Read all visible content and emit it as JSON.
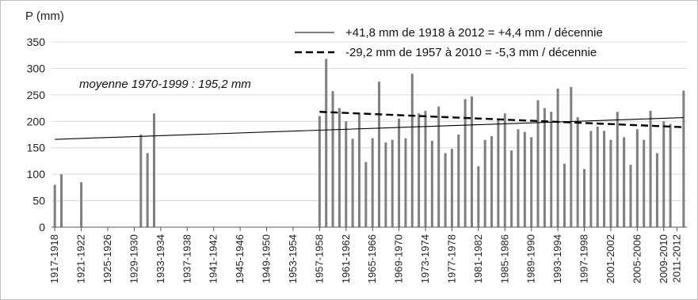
{
  "chart_data": {
    "type": "bar",
    "ylabel": "P (mm)",
    "ylim": [
      0,
      350
    ],
    "yticks": [
      0,
      50,
      100,
      150,
      200,
      250,
      300,
      350
    ],
    "grid": "horizontal",
    "legend_position": "top-right",
    "bar_color": "#7f7f7f",
    "annotation": "moyenne 1970-1999 : 195,2 mm",
    "xtick_labels": [
      "1917-1918",
      "1921-1922",
      "1925-1926",
      "1929-1930",
      "1933-1934",
      "1937-1938",
      "1941-1942",
      "1945-1946",
      "1949-1950",
      "1953-1954",
      "1957-1958",
      "1961-1962",
      "1965-1966",
      "1969-1970",
      "1973-1974",
      "1977-1978",
      "1981-1982",
      "1985-1986",
      "1989-1990",
      "1993-1994",
      "1997-1998",
      "2001-2002",
      "2005-2006",
      "2009-2010",
      "2011-2012"
    ],
    "xtick_years": [
      1917,
      1921,
      1925,
      1929,
      1933,
      1937,
      1941,
      1945,
      1949,
      1953,
      1957,
      1961,
      1965,
      1969,
      1973,
      1977,
      1981,
      1985,
      1989,
      1993,
      1997,
      2001,
      2005,
      2009,
      2011
    ],
    "bars": [
      {
        "year": 1917,
        "value": 80
      },
      {
        "year": 1918,
        "value": 100
      },
      {
        "year": 1921,
        "value": 85
      },
      {
        "year": 1930,
        "value": 175
      },
      {
        "year": 1931,
        "value": 140
      },
      {
        "year": 1932,
        "value": 215
      },
      {
        "year": 1957,
        "value": 210
      },
      {
        "year": 1958,
        "value": 318
      },
      {
        "year": 1959,
        "value": 257
      },
      {
        "year": 1960,
        "value": 225
      },
      {
        "year": 1961,
        "value": 200
      },
      {
        "year": 1962,
        "value": 167
      },
      {
        "year": 1963,
        "value": 213
      },
      {
        "year": 1964,
        "value": 123
      },
      {
        "year": 1965,
        "value": 168
      },
      {
        "year": 1966,
        "value": 275
      },
      {
        "year": 1967,
        "value": 160
      },
      {
        "year": 1968,
        "value": 165
      },
      {
        "year": 1969,
        "value": 205
      },
      {
        "year": 1970,
        "value": 168
      },
      {
        "year": 1971,
        "value": 290
      },
      {
        "year": 1972,
        "value": 215
      },
      {
        "year": 1973,
        "value": 220
      },
      {
        "year": 1974,
        "value": 163
      },
      {
        "year": 1975,
        "value": 228
      },
      {
        "year": 1976,
        "value": 140
      },
      {
        "year": 1977,
        "value": 148
      },
      {
        "year": 1978,
        "value": 175
      },
      {
        "year": 1979,
        "value": 242
      },
      {
        "year": 1980,
        "value": 247
      },
      {
        "year": 1981,
        "value": 115
      },
      {
        "year": 1982,
        "value": 165
      },
      {
        "year": 1983,
        "value": 172
      },
      {
        "year": 1984,
        "value": 202
      },
      {
        "year": 1985,
        "value": 215
      },
      {
        "year": 1986,
        "value": 145
      },
      {
        "year": 1987,
        "value": 185
      },
      {
        "year": 1988,
        "value": 180
      },
      {
        "year": 1989,
        "value": 170
      },
      {
        "year": 1990,
        "value": 240
      },
      {
        "year": 1991,
        "value": 225
      },
      {
        "year": 1992,
        "value": 218
      },
      {
        "year": 1993,
        "value": 262
      },
      {
        "year": 1994,
        "value": 120
      },
      {
        "year": 1995,
        "value": 265
      },
      {
        "year": 1996,
        "value": 208
      },
      {
        "year": 1997,
        "value": 110
      },
      {
        "year": 1998,
        "value": 182
      },
      {
        "year": 1999,
        "value": 190
      },
      {
        "year": 2000,
        "value": 182
      },
      {
        "year": 2001,
        "value": 165
      },
      {
        "year": 2002,
        "value": 218
      },
      {
        "year": 2003,
        "value": 170
      },
      {
        "year": 2004,
        "value": 118
      },
      {
        "year": 2005,
        "value": 185
      },
      {
        "year": 2006,
        "value": 165
      },
      {
        "year": 2007,
        "value": 220
      },
      {
        "year": 2008,
        "value": 140
      },
      {
        "year": 2009,
        "value": 200
      },
      {
        "year": 2010,
        "value": 195
      },
      {
        "year": 2012,
        "value": 258
      }
    ],
    "trends": [
      {
        "name": "+41,8 mm de 1918 à 2012 = +4,4 mm / décennie",
        "style": "solid",
        "x0": 1917,
        "y0": 166,
        "x1": 2012,
        "y1": 207
      },
      {
        "name": "-29,2 mm de 1957 à 2010 = -5,3 mm / décennie",
        "style": "dashed",
        "x0": 1957,
        "y0": 218,
        "x1": 2012,
        "y1": 189
      }
    ]
  }
}
